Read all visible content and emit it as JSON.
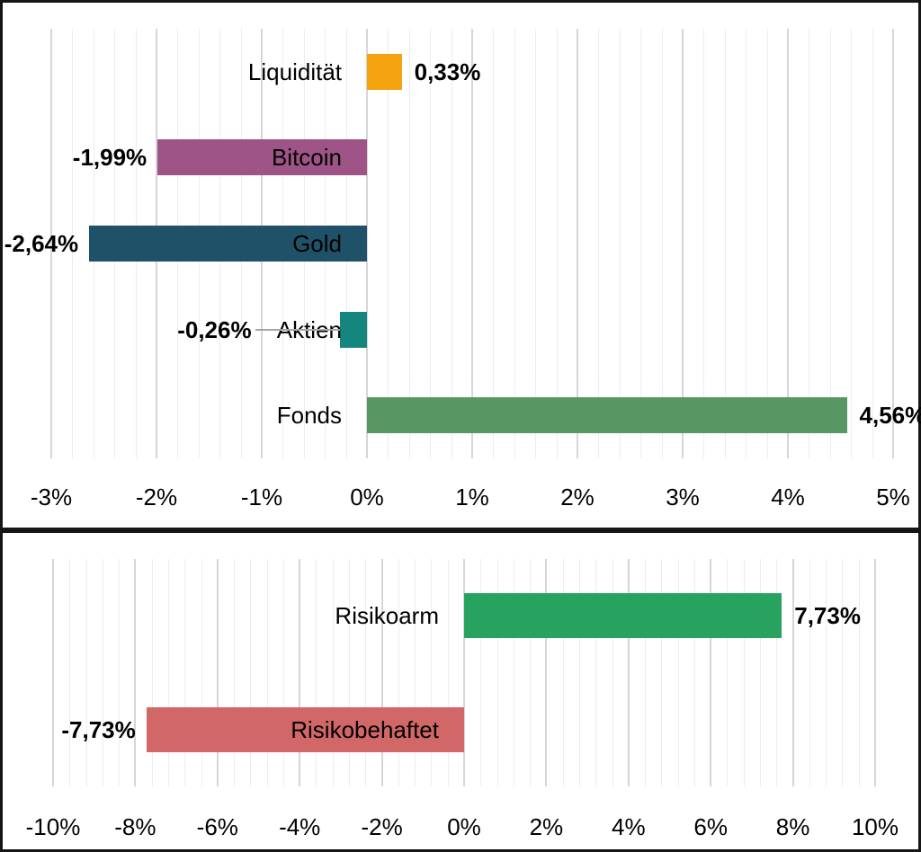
{
  "page": {
    "background": "#000000",
    "panel_background": "#ffffff",
    "panel_border_color": "#161616"
  },
  "colors": {
    "gridline_minor": "#ededed",
    "gridline_major": "#d6d6d6",
    "text": "#000000",
    "leader_line": "#a6a6a6"
  },
  "chart_data": [
    {
      "name": "anlageklassen-performance",
      "type": "bar",
      "orientation": "horizontal",
      "title": "",
      "categories": [
        "Liquidität",
        "Bitcoin",
        "Gold",
        "Aktien",
        "Fonds"
      ],
      "values": [
        0.33,
        -1.99,
        -2.64,
        -0.26,
        4.56
      ],
      "value_labels": [
        "0,33%",
        "-1,99%",
        "-2,64%",
        "-0,26%",
        "4,56%"
      ],
      "bar_colors": [
        "#F4A20E",
        "#9F5487",
        "#1F5268",
        "#15867D",
        "#579763"
      ],
      "axis": {
        "xlabel": "",
        "min": -3,
        "max": 5,
        "major_step": 1,
        "minor_step": 0.2,
        "tick_labels": [
          "-3%",
          "-2%",
          "-1%",
          "0%",
          "1%",
          "2%",
          "3%",
          "4%",
          "5%"
        ],
        "grid": true
      },
      "legend": null
    },
    {
      "name": "risiko-performance",
      "type": "bar",
      "orientation": "horizontal",
      "title": "",
      "categories": [
        "Risikoarm",
        "Risikobehaftet"
      ],
      "values": [
        7.73,
        -7.73
      ],
      "value_labels": [
        "7,73%",
        "-7,73%"
      ],
      "bar_colors": [
        "#28A35F",
        "#D26767"
      ],
      "axis": {
        "xlabel": "",
        "min": -10,
        "max": 10,
        "major_step": 2,
        "minor_step": 0.4,
        "tick_labels": [
          "-10%",
          "-8%",
          "-6%",
          "-4%",
          "-2%",
          "0%",
          "2%",
          "4%",
          "6%",
          "8%",
          "10%"
        ],
        "grid": true
      },
      "legend": null
    }
  ]
}
